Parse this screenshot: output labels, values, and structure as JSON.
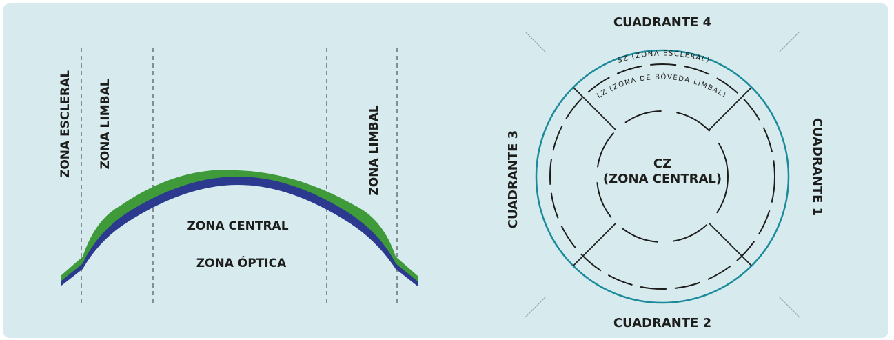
{
  "profile": {
    "zone_escleral": "ZONA ESCLERAL",
    "zone_limbal_left": "ZONA LIMBAL",
    "zone_limbal_right": "ZONA LIMBAL",
    "zone_central": "ZONA CENTRAL",
    "zone_optica": "ZONA ÓPTICA"
  },
  "quadrants": {
    "q1": "CUADRANTE 1",
    "q2": "CUADRANTE 2",
    "q3": "CUADRANTE 3",
    "q4": "CUADRANTE 4",
    "sz": "SZ (ZONA ESCLERAL)",
    "lz": "LZ (ZONA DE BÓVEDA LIMBAL)",
    "cz": "CZ",
    "cz_sub": "(ZONA CENTRAL)"
  },
  "colors": {
    "panel_bg": "#d7ebef",
    "ring": "#1b8a9a",
    "lens_green": "#3f9a3a",
    "lens_blue": "#2b3a8f",
    "text": "#1d1d1b"
  }
}
